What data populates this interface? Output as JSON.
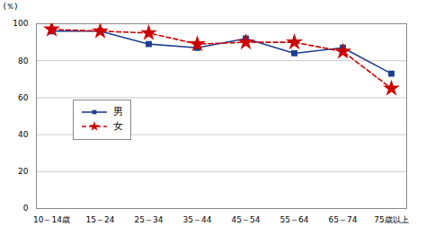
{
  "chart_data": {
    "type": "line",
    "categories": [
      "10～14歳",
      "15～24",
      "25～34",
      "35～44",
      "45～54",
      "55～64",
      "65～74",
      "75歳以上"
    ],
    "series": [
      {
        "name": "男",
        "color": "#1f3f8f",
        "values": [
          96,
          96,
          89,
          87,
          92,
          84,
          87,
          73
        ],
        "marker": "square",
        "line_style": "solid"
      },
      {
        "name": "女",
        "color": "#cc0000",
        "values": [
          97,
          96,
          95,
          89,
          90,
          90,
          85,
          65
        ],
        "marker": "star",
        "line_style": "dashed"
      }
    ],
    "ylabel": "(％)",
    "ylim": [
      0,
      100
    ],
    "yticks": [
      0,
      20,
      40,
      60,
      80,
      100
    ],
    "grid": true,
    "legend": "center left"
  }
}
